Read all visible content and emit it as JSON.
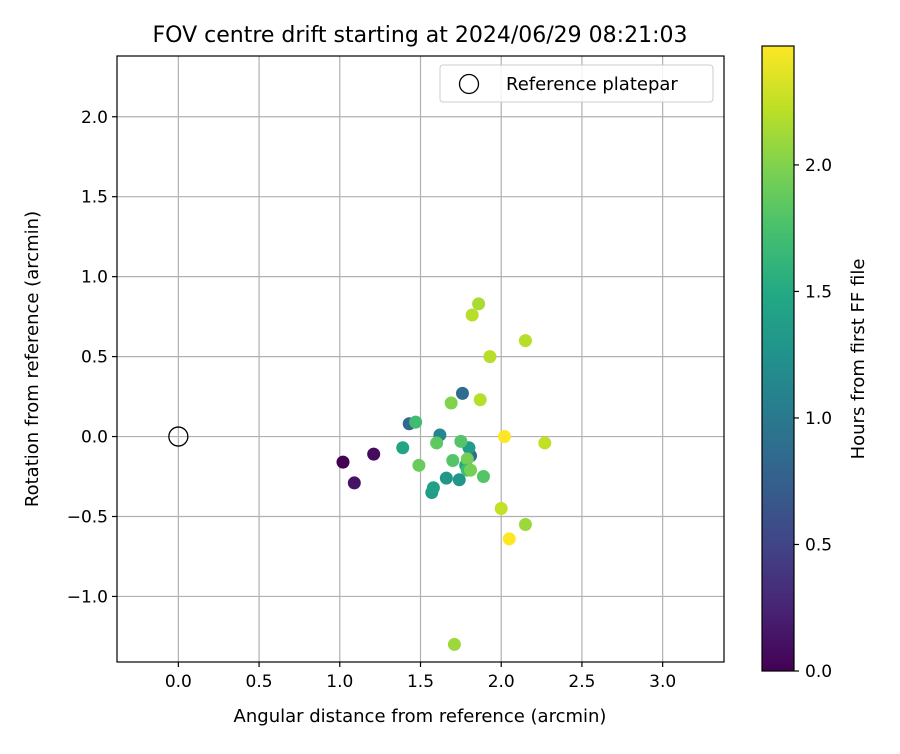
{
  "chart_data": {
    "type": "scatter",
    "title": "FOV centre drift starting at 2024/06/29 08:21:03",
    "xlabel": "Angular distance from reference (arcmin)",
    "ylabel": "Rotation from reference (arcmin)",
    "xlim": [
      -0.38,
      3.38
    ],
    "ylim": [
      -1.41,
      2.38
    ],
    "xticks": [
      0.0,
      0.5,
      1.0,
      1.5,
      2.0,
      2.5,
      3.0
    ],
    "xtick_labels": [
      "0.0",
      "0.5",
      "1.0",
      "1.5",
      "2.0",
      "2.5",
      "3.0"
    ],
    "yticks": [
      -1.0,
      -0.5,
      0.0,
      0.5,
      1.0,
      1.5,
      2.0
    ],
    "ytick_labels": [
      "−1.0",
      "−0.5",
      "0.0",
      "0.5",
      "1.0",
      "1.5",
      "2.0"
    ],
    "grid": true,
    "legend": {
      "placement": "top-right",
      "entries": [
        {
          "label": "Reference platepar",
          "marker": "open-circle",
          "color": "#000000"
        }
      ]
    },
    "reference_point": {
      "x": 0.0,
      "y": 0.0
    },
    "colorbar": {
      "label": "Hours from first FF file",
      "colormap": "viridis",
      "range": [
        0.0,
        2.47
      ],
      "ticks": [
        0.0,
        0.5,
        1.0,
        1.5,
        2.0
      ],
      "tick_labels": [
        "0.0",
        "0.5",
        "1.0",
        "1.5",
        "2.0"
      ]
    },
    "points": [
      {
        "x": 1.02,
        "y": -0.16,
        "hours": 0.0
      },
      {
        "x": 1.09,
        "y": -0.29,
        "hours": 0.13
      },
      {
        "x": 1.21,
        "y": -0.11,
        "hours": 0.07
      },
      {
        "x": 1.43,
        "y": 0.08,
        "hours": 0.83
      },
      {
        "x": 1.76,
        "y": 0.27,
        "hours": 0.88
      },
      {
        "x": 1.62,
        "y": 0.01,
        "hours": 1.13
      },
      {
        "x": 1.81,
        "y": -0.12,
        "hours": 0.9
      },
      {
        "x": 1.8,
        "y": -0.07,
        "hours": 1.35
      },
      {
        "x": 1.39,
        "y": -0.07,
        "hours": 1.45
      },
      {
        "x": 1.47,
        "y": 0.09,
        "hours": 1.7
      },
      {
        "x": 1.57,
        "y": -0.35,
        "hours": 1.35
      },
      {
        "x": 1.58,
        "y": -0.32,
        "hours": 1.4
      },
      {
        "x": 1.66,
        "y": -0.26,
        "hours": 1.3
      },
      {
        "x": 1.74,
        "y": -0.27,
        "hours": 1.3
      },
      {
        "x": 1.78,
        "y": -0.18,
        "hours": 1.5
      },
      {
        "x": 1.49,
        "y": -0.18,
        "hours": 1.9
      },
      {
        "x": 1.6,
        "y": -0.04,
        "hours": 1.85
      },
      {
        "x": 1.7,
        "y": -0.15,
        "hours": 1.8
      },
      {
        "x": 1.75,
        "y": -0.03,
        "hours": 1.8
      },
      {
        "x": 1.79,
        "y": -0.14,
        "hours": 1.95
      },
      {
        "x": 1.79,
        "y": -0.21,
        "hours": 1.7
      },
      {
        "x": 1.81,
        "y": -0.21,
        "hours": 1.95
      },
      {
        "x": 1.89,
        "y": -0.25,
        "hours": 1.8
      },
      {
        "x": 1.69,
        "y": 0.21,
        "hours": 2.0
      },
      {
        "x": 1.87,
        "y": 0.23,
        "hours": 2.2
      },
      {
        "x": 1.93,
        "y": 0.5,
        "hours": 2.2
      },
      {
        "x": 1.82,
        "y": 0.76,
        "hours": 2.2
      },
      {
        "x": 1.86,
        "y": 0.83,
        "hours": 2.15
      },
      {
        "x": 2.15,
        "y": 0.6,
        "hours": 2.2
      },
      {
        "x": 2.02,
        "y": 0.0,
        "hours": 2.47
      },
      {
        "x": 2.27,
        "y": -0.04,
        "hours": 2.25
      },
      {
        "x": 2.0,
        "y": -0.45,
        "hours": 2.25
      },
      {
        "x": 2.15,
        "y": -0.55,
        "hours": 2.1
      },
      {
        "x": 2.05,
        "y": -0.64,
        "hours": 2.47
      },
      {
        "x": 1.71,
        "y": -1.3,
        "hours": 2.1
      }
    ]
  }
}
